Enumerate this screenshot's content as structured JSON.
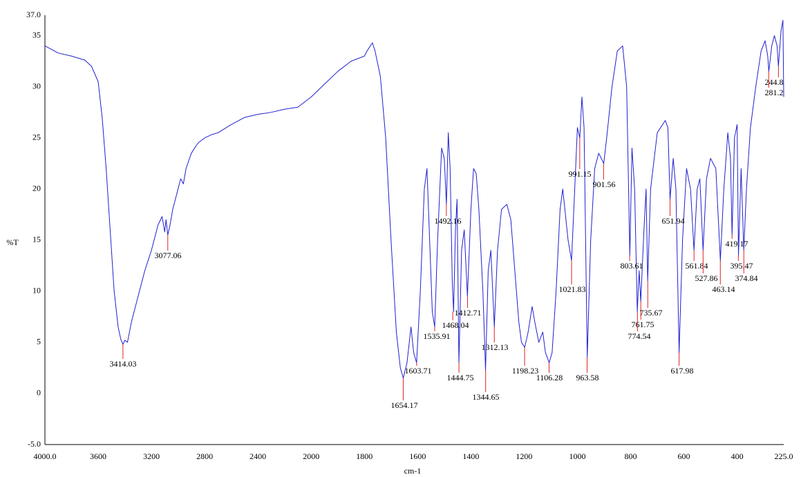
{
  "chart_data": {
    "type": "line",
    "xlabel": "cm-1",
    "ylabel": "%T",
    "xlim": [
      4000,
      225
    ],
    "ylim": [
      -5,
      37
    ],
    "xticks": [
      {
        "value": 4000,
        "label": "4000.0"
      },
      3600,
      3200,
      2800,
      2400,
      2000,
      1800,
      1600,
      1400,
      1200,
      1000,
      800,
      600,
      400,
      {
        "value": 225,
        "label": "225.0"
      }
    ],
    "yticks": [
      {
        "value": -5,
        "label": "-5.0"
      },
      0,
      5,
      10,
      15,
      20,
      25,
      30,
      35,
      {
        "value": 37,
        "label": "37.0"
      }
    ],
    "grid": false,
    "x": [
      4000,
      3900,
      3800,
      3700,
      3650,
      3600,
      3570,
      3540,
      3510,
      3480,
      3450,
      3430,
      3414,
      3400,
      3380,
      3350,
      3300,
      3250,
      3200,
      3150,
      3120,
      3100,
      3090,
      3077,
      3060,
      3040,
      3020,
      3000,
      2980,
      2960,
      2940,
      2900,
      2850,
      2800,
      2750,
      2700,
      2600,
      2500,
      2400,
      2300,
      2200,
      2100,
      2050,
      2000,
      1960,
      1900,
      1850,
      1800,
      1790,
      1770,
      1760,
      1740,
      1720,
      1700,
      1680,
      1665,
      1654,
      1640,
      1625,
      1615,
      1604,
      1590,
      1575,
      1565,
      1555,
      1545,
      1536,
      1525,
      1510,
      1500,
      1492,
      1485,
      1478,
      1470,
      1465,
      1458,
      1452,
      1445,
      1435,
      1425,
      1413,
      1400,
      1390,
      1380,
      1370,
      1355,
      1345,
      1335,
      1325,
      1312,
      1300,
      1285,
      1265,
      1250,
      1235,
      1220,
      1210,
      1198,
      1185,
      1170,
      1160,
      1145,
      1130,
      1120,
      1106,
      1095,
      1080,
      1065,
      1055,
      1045,
      1035,
      1022,
      1010,
      1000,
      991,
      983,
      975,
      963,
      950,
      935,
      920,
      901,
      890,
      870,
      850,
      830,
      815,
      803,
      795,
      785,
      775,
      768,
      762,
      750,
      742,
      736,
      725,
      700,
      670,
      660,
      652,
      640,
      630,
      618,
      605,
      590,
      575,
      562,
      550,
      540,
      528,
      515,
      500,
      480,
      463,
      450,
      435,
      425,
      419,
      410,
      400,
      395,
      385,
      375,
      365,
      350,
      330,
      310,
      295,
      285,
      281,
      270,
      260,
      250,
      245,
      235,
      228,
      225
    ],
    "series": [
      {
        "color": "#1f1fd0",
        "values": [
          34,
          33.3,
          33,
          32.6,
          32,
          30.5,
          27,
          22,
          16,
          10,
          6.5,
          5.3,
          4.8,
          5.2,
          5,
          7,
          9.5,
          12,
          14,
          16.5,
          17.3,
          15.8,
          17,
          15.5,
          16.5,
          18,
          19,
          20,
          21,
          20.5,
          22,
          23.5,
          24.5,
          25,
          25.3,
          25.5,
          26.3,
          27,
          27.3,
          27.5,
          27.8,
          28,
          28.5,
          29,
          30,
          31.5,
          32.5,
          33,
          33.5,
          34.3,
          33.5,
          31,
          25,
          15,
          6,
          2.5,
          1.5,
          3,
          6.5,
          4,
          3,
          10,
          20,
          22,
          15,
          8,
          6.5,
          15,
          24,
          23,
          18.5,
          25.5,
          22,
          11,
          8,
          16,
          19,
          3,
          14,
          16,
          9.5,
          18,
          22,
          21.5,
          18,
          10,
          2.3,
          12,
          14,
          6.5,
          14,
          18,
          18.5,
          17,
          12,
          7,
          5,
          4.5,
          6,
          8.5,
          7,
          5,
          6,
          4,
          3,
          4,
          10,
          18,
          20,
          17.5,
          15,
          13,
          20,
          26,
          25,
          29,
          26,
          3.5,
          15,
          22,
          23.5,
          22.5,
          25,
          30,
          33.5,
          34,
          30,
          13.5,
          24,
          20,
          8,
          12,
          9,
          16,
          20,
          11,
          20,
          25.5,
          26.7,
          26,
          19,
          23,
          20,
          4,
          15,
          22,
          20,
          14,
          20,
          21,
          14,
          21,
          23,
          22,
          13,
          20,
          25.5,
          23,
          15.5,
          25,
          26.3,
          13.5,
          22,
          14,
          20,
          26,
          30,
          33.5,
          34.5,
          33,
          31.5,
          34,
          35,
          34,
          32,
          35.5,
          36.5,
          29
        ]
      }
    ],
    "peak_color": "#e02020",
    "peaks": [
      {
        "x": 3414.03,
        "y": 4.8
      },
      {
        "x": 3077.06,
        "y": 15.5
      },
      {
        "x": 1654.17,
        "y": 1.5
      },
      {
        "x": 1603.71,
        "y": 3
      },
      {
        "x": 1535.91,
        "y": 6.5
      },
      {
        "x": 1492.16,
        "y": 18.5
      },
      {
        "x": 1468.04,
        "y": 8
      },
      {
        "x": 1444.75,
        "y": 3
      },
      {
        "x": 1412.71,
        "y": 9.5
      },
      {
        "x": 1344.65,
        "y": 2.3
      },
      {
        "x": 1312.13,
        "y": 6.5
      },
      {
        "x": 1198.23,
        "y": 4.5
      },
      {
        "x": 1106.28,
        "y": 3
      },
      {
        "x": 1021.83,
        "y": 13
      },
      {
        "x": 991.15,
        "y": 25
      },
      {
        "x": 963.58,
        "y": 3.5
      },
      {
        "x": 901.56,
        "y": 22.5
      },
      {
        "x": 803.61,
        "y": 13.5
      },
      {
        "x": 774.54,
        "y": 8
      },
      {
        "x": 761.75,
        "y": 9
      },
      {
        "x": 735.67,
        "y": 11
      },
      {
        "x": 651.94,
        "y": 19
      },
      {
        "x": 617.98,
        "y": 4
      },
      {
        "x": 561.84,
        "y": 14
      },
      {
        "x": 527.86,
        "y": 14
      },
      {
        "x": 463.14,
        "y": 13
      },
      {
        "x": 419.17,
        "y": 15.5
      },
      {
        "x": 395.47,
        "y": 13.5
      },
      {
        "x": 374.84,
        "y": 14
      },
      {
        "x": 281.2,
        "y": 31.5
      },
      {
        "x": 244.8,
        "y": 32
      }
    ]
  }
}
